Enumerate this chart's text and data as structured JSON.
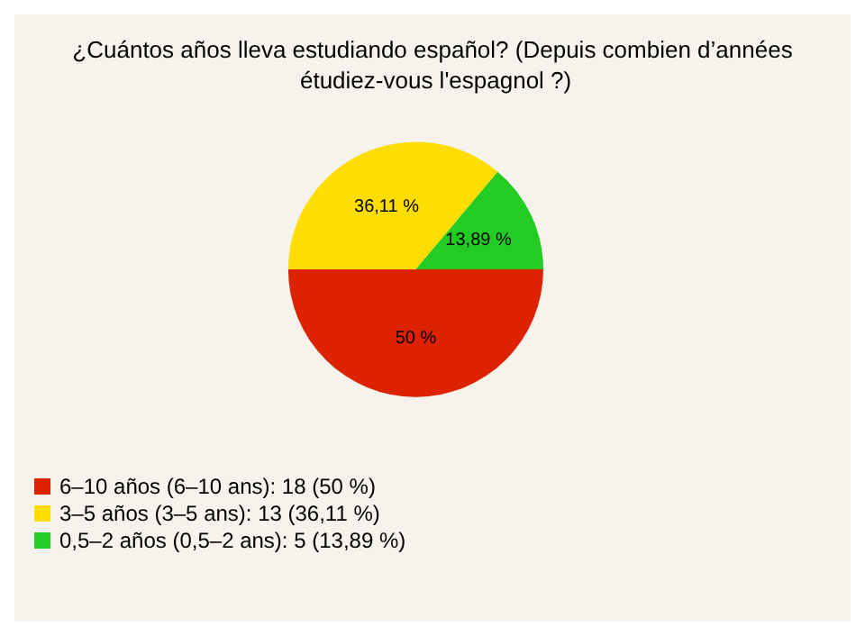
{
  "chart_data": {
    "type": "pie",
    "title": "¿Cuántos años lleva estudiando español? (Depuis combien d’années étudiez-vous l'espagnol ?)",
    "categories": [
      "6–10 años (6–10 ans): 18 (50 %)",
      "3–5 años (3–5 ans): 13 (36,11 %)",
      "0,5–2 años (0,5–2 ans): 5 (13,89 %)"
    ],
    "values": [
      50,
      36.11,
      13.89
    ],
    "value_labels": [
      "50 %",
      "36,11 %",
      "13,89 %"
    ],
    "colors": [
      "#dd2200",
      "#ffdd00",
      "#22cc22"
    ],
    "legend": "bottom left"
  }
}
